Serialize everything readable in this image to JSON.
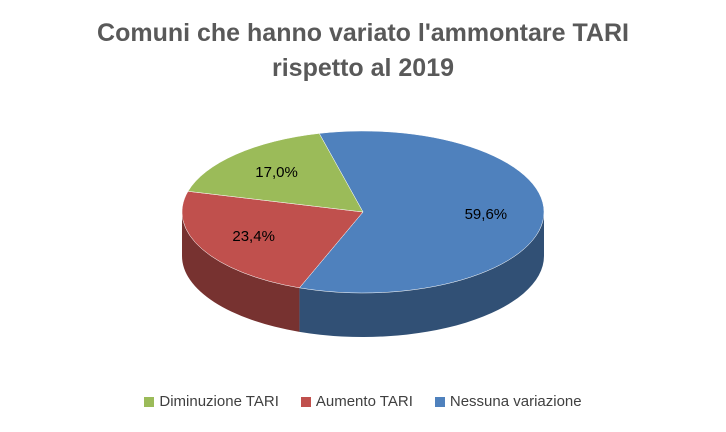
{
  "chart_data": {
    "type": "pie",
    "title": "Comuni che hanno variato l'ammontare TARI rispetto al 2019",
    "categories": [
      "Diminuzione TARI",
      "Aumento TARI",
      "Nessuna variazione"
    ],
    "values": [
      17.0,
      23.4,
      59.6
    ],
    "value_labels": [
      "17,0%",
      "23,4%",
      "59,6%"
    ],
    "colors": [
      "#9bbb59",
      "#c0504d",
      "#4f81bd"
    ]
  }
}
